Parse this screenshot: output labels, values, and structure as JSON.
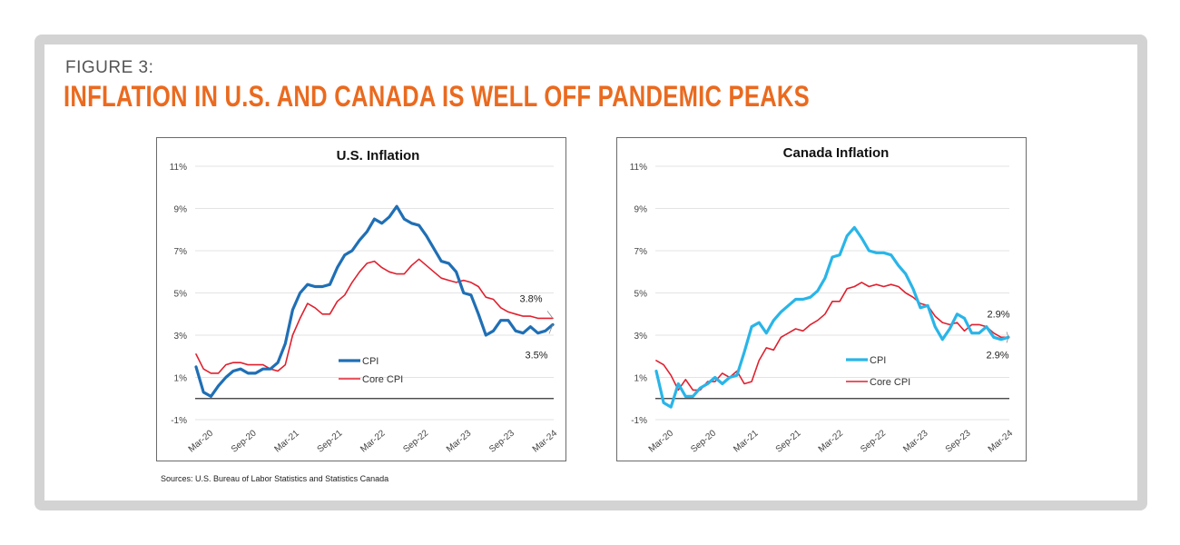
{
  "header": {
    "figure_label": "FIGURE 3:",
    "title": "INFLATION IN U.S. AND CANADA IS WELL OFF PANDEMIC PEAKS"
  },
  "sources": "Sources: U.S. Bureau of Labor Statistics and Statistics Canada",
  "colors": {
    "title_orange": "#ea6a1f",
    "us_cpi": "#1f6fb5",
    "core_cpi": "#e0202e",
    "ca_cpi": "#29b5e8",
    "frame_gray": "#d3d3d3"
  },
  "chart_data": [
    {
      "type": "line",
      "title": "U.S. Inflation",
      "xlabel": "",
      "ylabel": "",
      "ylim": [
        -1,
        11
      ],
      "yticks": [
        "11%",
        "9%",
        "7%",
        "5%",
        "3%",
        "1%",
        "-1%"
      ],
      "ytick_values": [
        11,
        9,
        7,
        5,
        3,
        1,
        -1
      ],
      "xticks": [
        "Mar-20",
        "Sep-20",
        "Mar-21",
        "Sep-21",
        "Mar-22",
        "Sep-22",
        "Mar-23",
        "Sep-23",
        "Mar-24"
      ],
      "grid": true,
      "legend": "center-left",
      "series": [
        {
          "name": "CPI",
          "color": "#1f6fb5",
          "values": [
            1.5,
            0.3,
            0.1,
            0.6,
            1.0,
            1.3,
            1.4,
            1.2,
            1.2,
            1.4,
            1.4,
            1.7,
            2.6,
            4.2,
            5.0,
            5.4,
            5.3,
            5.3,
            5.4,
            6.2,
            6.8,
            7.0,
            7.5,
            7.9,
            8.5,
            8.3,
            8.6,
            9.1,
            8.5,
            8.3,
            8.2,
            7.7,
            7.1,
            6.5,
            6.4,
            6.0,
            5.0,
            4.9,
            4.0,
            3.0,
            3.2,
            3.7,
            3.7,
            3.2,
            3.1,
            3.4,
            3.1,
            3.2,
            3.5
          ]
        },
        {
          "name": "Core CPI",
          "color": "#e0202e",
          "values": [
            2.1,
            1.4,
            1.2,
            1.2,
            1.6,
            1.7,
            1.7,
            1.6,
            1.6,
            1.6,
            1.4,
            1.3,
            1.6,
            3.0,
            3.8,
            4.5,
            4.3,
            4.0,
            4.0,
            4.6,
            4.9,
            5.5,
            6.0,
            6.4,
            6.5,
            6.2,
            6.0,
            5.9,
            5.9,
            6.3,
            6.6,
            6.3,
            6.0,
            5.7,
            5.6,
            5.5,
            5.6,
            5.5,
            5.3,
            4.8,
            4.7,
            4.3,
            4.1,
            4.0,
            3.9,
            3.9,
            3.8,
            3.8,
            3.8
          ]
        }
      ],
      "annotations": [
        {
          "text": "3.8%",
          "series": "Core CPI"
        },
        {
          "text": "3.5%",
          "series": "CPI"
        }
      ]
    },
    {
      "type": "line",
      "title": "Canada Inflation",
      "xlabel": "",
      "ylabel": "",
      "ylim": [
        -1,
        11
      ],
      "yticks": [
        "11%",
        "9%",
        "7%",
        "5%",
        "3%",
        "1%",
        "-1%"
      ],
      "ytick_values": [
        11,
        9,
        7,
        5,
        3,
        1,
        -1
      ],
      "xticks": [
        "Mar-20",
        "Sep-20",
        "Mar-21",
        "Sep-21",
        "Mar-22",
        "Sep-22",
        "Mar-23",
        "Sep-23",
        "Mar-24"
      ],
      "grid": true,
      "legend": "center-left",
      "series": [
        {
          "name": "CPI",
          "color": "#29b5e8",
          "values": [
            1.3,
            -0.2,
            -0.4,
            0.7,
            0.1,
            0.1,
            0.5,
            0.7,
            1.0,
            0.7,
            1.0,
            1.1,
            2.2,
            3.4,
            3.6,
            3.1,
            3.7,
            4.1,
            4.4,
            4.7,
            4.7,
            4.8,
            5.1,
            5.7,
            6.7,
            6.8,
            7.7,
            8.1,
            7.6,
            7.0,
            6.9,
            6.9,
            6.8,
            6.3,
            5.9,
            5.2,
            4.3,
            4.4,
            3.4,
            2.8,
            3.3,
            4.0,
            3.8,
            3.1,
            3.1,
            3.4,
            2.9,
            2.8,
            2.9
          ]
        },
        {
          "name": "Core CPI",
          "color": "#e0202e",
          "values": [
            1.8,
            1.6,
            1.1,
            0.4,
            0.9,
            0.4,
            0.4,
            0.8,
            0.8,
            1.2,
            1.0,
            1.3,
            0.7,
            0.8,
            1.8,
            2.4,
            2.3,
            2.9,
            3.1,
            3.3,
            3.2,
            3.5,
            3.7,
            4.0,
            4.6,
            4.6,
            5.2,
            5.3,
            5.5,
            5.3,
            5.4,
            5.3,
            5.4,
            5.3,
            5.0,
            4.8,
            4.5,
            4.4,
            3.9,
            3.6,
            3.5,
            3.6,
            3.2,
            3.5,
            3.5,
            3.4,
            3.1,
            2.9,
            2.9
          ]
        }
      ],
      "annotations": [
        {
          "text": "2.9%",
          "series": "Core CPI"
        },
        {
          "text": "2.9%",
          "series": "CPI"
        }
      ]
    }
  ]
}
